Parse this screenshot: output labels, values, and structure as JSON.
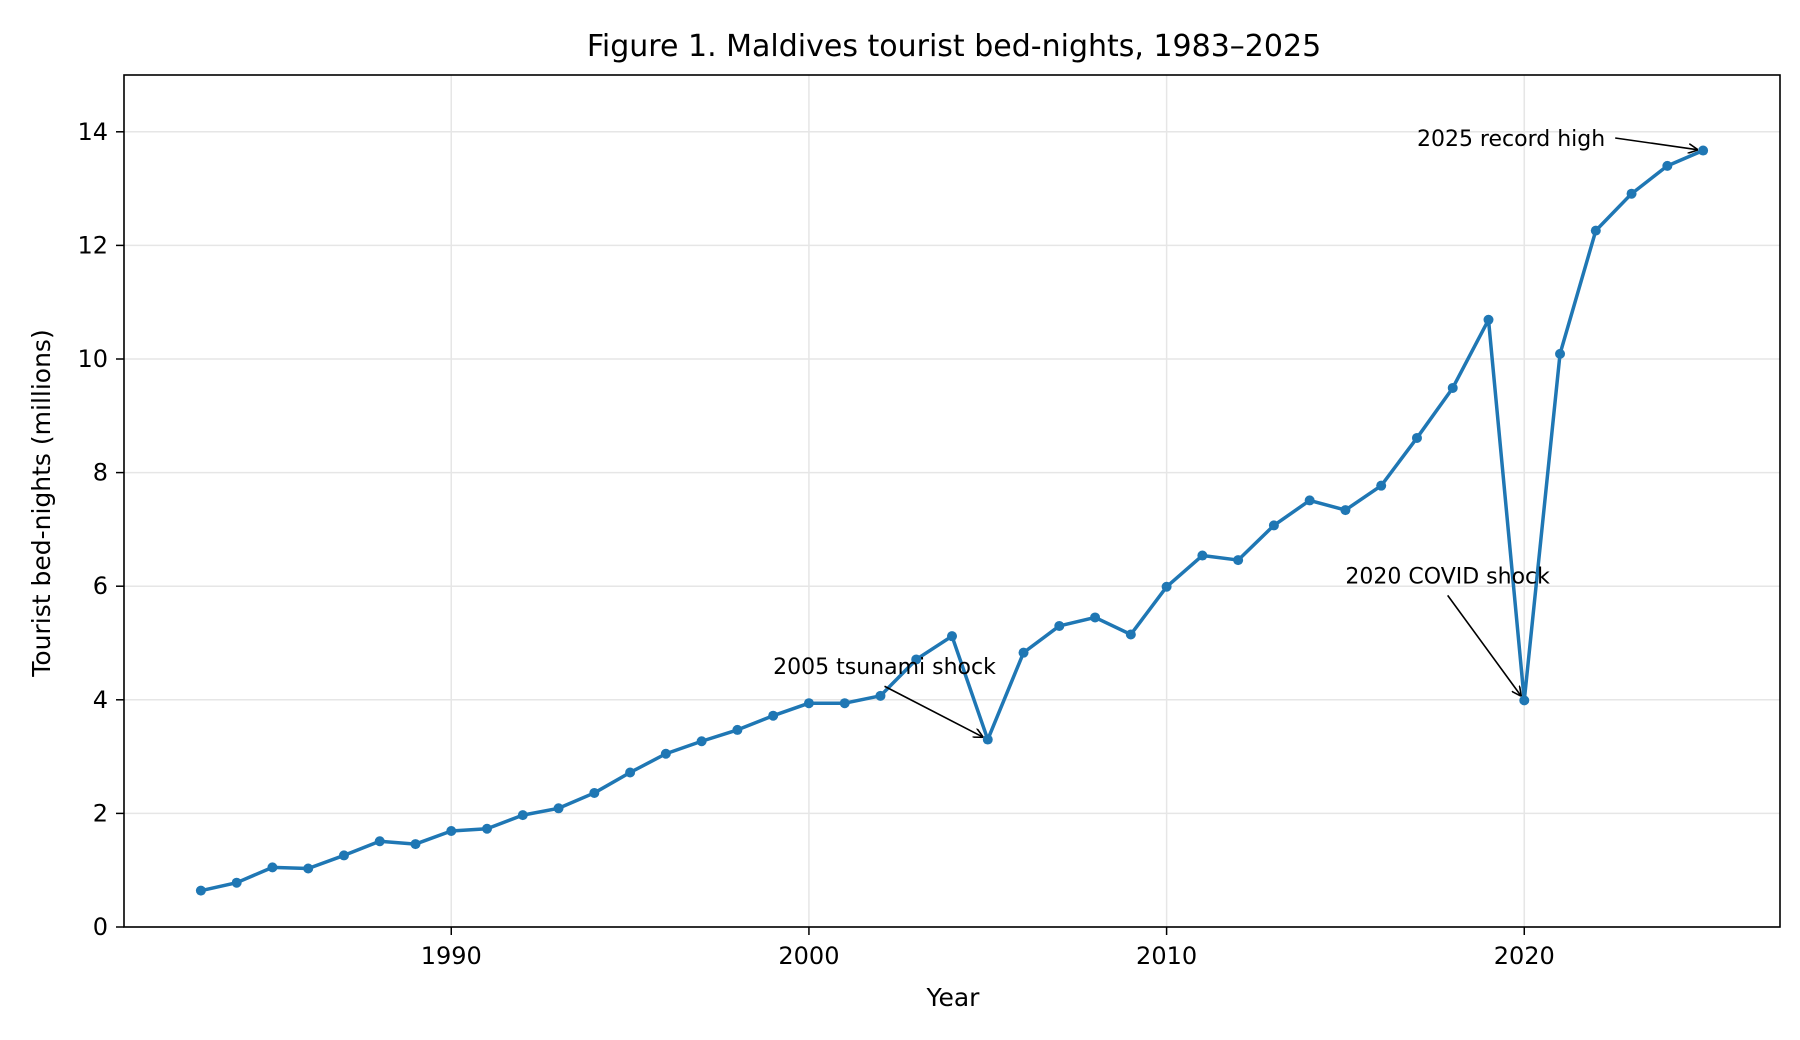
{
  "chart_data": {
    "type": "line",
    "title": "Figure 1. Maldives tourist bed-nights, 1983–2025",
    "xlabel": "Year",
    "ylabel": "Tourist bed-nights (millions)",
    "xlim": [
      1980.85,
      2027.15
    ],
    "ylim": [
      0,
      15
    ],
    "xticks": [
      1990,
      2000,
      2010,
      2020
    ],
    "yticks": [
      0,
      2,
      4,
      6,
      8,
      10,
      12,
      14
    ],
    "grid": true,
    "legend": "none",
    "line_color": "#1f77b4",
    "series": [
      {
        "x": [
          1983,
          1984,
          1985,
          1986,
          1987,
          1988,
          1989,
          1990,
          1991,
          1992,
          1993,
          1994,
          1995,
          1996,
          1997,
          1998,
          1999,
          2000,
          2001,
          2002,
          2003,
          2004,
          2005,
          2006,
          2007,
          2008,
          2009,
          2010,
          2011,
          2012,
          2013,
          2014,
          2015,
          2016,
          2017,
          2018,
          2019,
          2020,
          2021,
          2022,
          2023,
          2024,
          2025
        ],
        "values": [
          0.64,
          0.78,
          1.05,
          1.03,
          1.26,
          1.51,
          1.46,
          1.69,
          1.73,
          1.97,
          2.09,
          2.36,
          2.72,
          3.05,
          3.27,
          3.47,
          3.72,
          3.94,
          3.94,
          4.07,
          4.71,
          5.12,
          3.3,
          4.83,
          5.3,
          5.45,
          5.15,
          5.99,
          6.54,
          6.46,
          7.07,
          7.51,
          7.34,
          7.77,
          8.61,
          9.49,
          10.69,
          3.99,
          10.09,
          12.26,
          12.91,
          13.4,
          13.67
        ]
      }
    ],
    "annotations": [
      {
        "text": "2005 tsunami shock",
        "x": 2005,
        "y": 3.3,
        "text_x": 1999,
        "text_y": 4.45
      },
      {
        "text": "2020 COVID shock",
        "x": 2020,
        "y": 3.99,
        "text_x": 2015,
        "text_y": 6.05
      },
      {
        "text": "2025 record high",
        "x": 2025,
        "y": 13.67,
        "text_x": 2017,
        "text_y": 13.75
      }
    ]
  }
}
